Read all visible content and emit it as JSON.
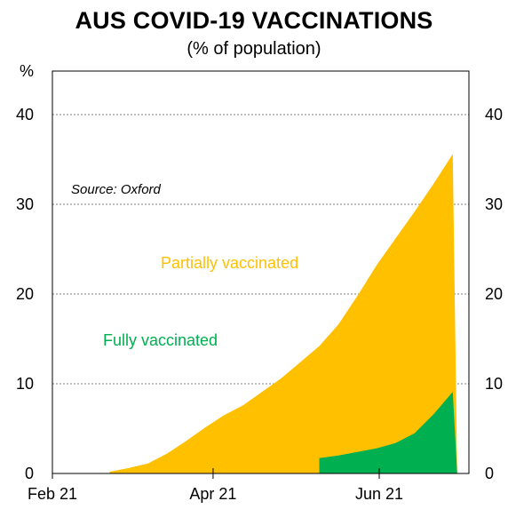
{
  "chart_data": {
    "type": "area",
    "title": "AUS COVID-19 VACCINATIONS",
    "subtitle": "(% of population)",
    "ylabel_left": "%",
    "source": "Source: Oxford",
    "y_ticks": [
      "0",
      "10",
      "20",
      "30",
      "40"
    ],
    "x_ticks": [
      "Feb 21",
      "Apr 21",
      "Jun 21"
    ],
    "ylim": [
      0,
      40
    ],
    "grid": true,
    "x_dates": [
      "2021-02-22",
      "2021-03-01",
      "2021-03-08",
      "2021-03-15",
      "2021-03-22",
      "2021-03-29",
      "2021-04-05",
      "2021-04-12",
      "2021-04-19",
      "2021-04-26",
      "2021-05-03",
      "2021-05-10",
      "2021-05-17",
      "2021-05-24",
      "2021-05-31",
      "2021-06-07",
      "2021-06-14",
      "2021-06-21",
      "2021-06-28"
    ],
    "series": [
      {
        "name": "Partially vaccinated",
        "color": "#FFC000",
        "values": [
          0.2,
          0.6,
          1.1,
          2.2,
          3.6,
          5.1,
          6.5,
          7.6,
          9.1,
          10.6,
          12.4,
          14.2,
          16.6,
          19.8,
          23.2,
          26.2,
          29.2,
          32.3,
          35.6
        ]
      },
      {
        "name": "Fully vaccinated",
        "color": "#00B050",
        "values": [
          0,
          0,
          0,
          0,
          0,
          0,
          0,
          0,
          0,
          0,
          0,
          1.7,
          2.0,
          2.4,
          2.8,
          3.4,
          4.5,
          6.6,
          9.1
        ]
      }
    ]
  }
}
